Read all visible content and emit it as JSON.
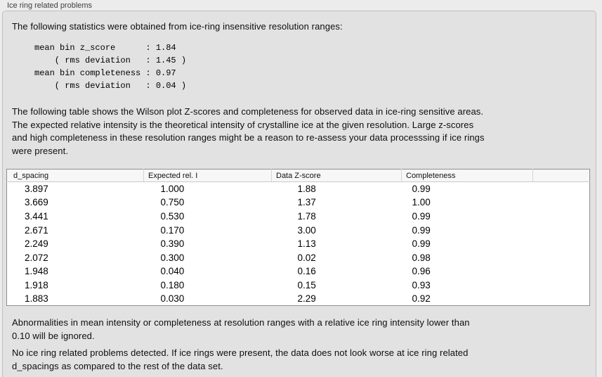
{
  "panel": {
    "group_title": "Ice ring related problems",
    "intro_text": "The following statistics were obtained from ice-ring insensitive resolution ranges:",
    "stats_block": "mean bin z_score      : 1.84\n    ( rms deviation   : 1.45 )\nmean bin completeness : 0.97\n    ( rms deviation   : 0.04 )",
    "stats": {
      "mean_bin_z_score": "1.84",
      "z_score_rms_deviation": "1.45",
      "mean_bin_completeness": "0.97",
      "completeness_rms_deviation": "0.04"
    },
    "table_description": "The following table shows the Wilson plot Z-scores and completeness for observed data in ice-ring sensitive areas.\nThe expected relative intensity is the theoretical intensity of crystalline ice at the given resolution. Large z-scores\nand high completeness in these resolution ranges might be a reason to re-assess your data processsing if ice rings\nwere present.",
    "ignore_note": "Abnormalities in mean intensity or completeness at resolution ranges with a relative ice ring intensity lower than\n0.10 will be ignored.",
    "conclusion_note": "No ice ring related problems detected. If ice rings were present, the data does not look worse at ice ring related\nd_spacings as compared to the rest of the data set."
  },
  "table": {
    "headers": [
      "d_spacing",
      "Expected rel. I",
      "Data Z-score",
      "Completeness",
      ""
    ],
    "rows": [
      [
        "3.897",
        "1.000",
        "1.88",
        "0.99"
      ],
      [
        "3.669",
        "0.750",
        "1.37",
        "1.00"
      ],
      [
        "3.441",
        "0.530",
        "1.78",
        "0.99"
      ],
      [
        "2.671",
        "0.170",
        "3.00",
        "0.99"
      ],
      [
        "2.249",
        "0.390",
        "1.13",
        "0.99"
      ],
      [
        "2.072",
        "0.300",
        "0.02",
        "0.98"
      ],
      [
        "1.948",
        "0.040",
        "0.16",
        "0.96"
      ],
      [
        "1.918",
        "0.180",
        "0.15",
        "0.93"
      ],
      [
        "1.883",
        "0.030",
        "2.29",
        "0.92"
      ]
    ]
  },
  "colors": {
    "panel_background": "#ececec",
    "group_box_background": "#e2e2e2",
    "table_background": "#ffffff",
    "table_border": "#8f8f8f"
  }
}
